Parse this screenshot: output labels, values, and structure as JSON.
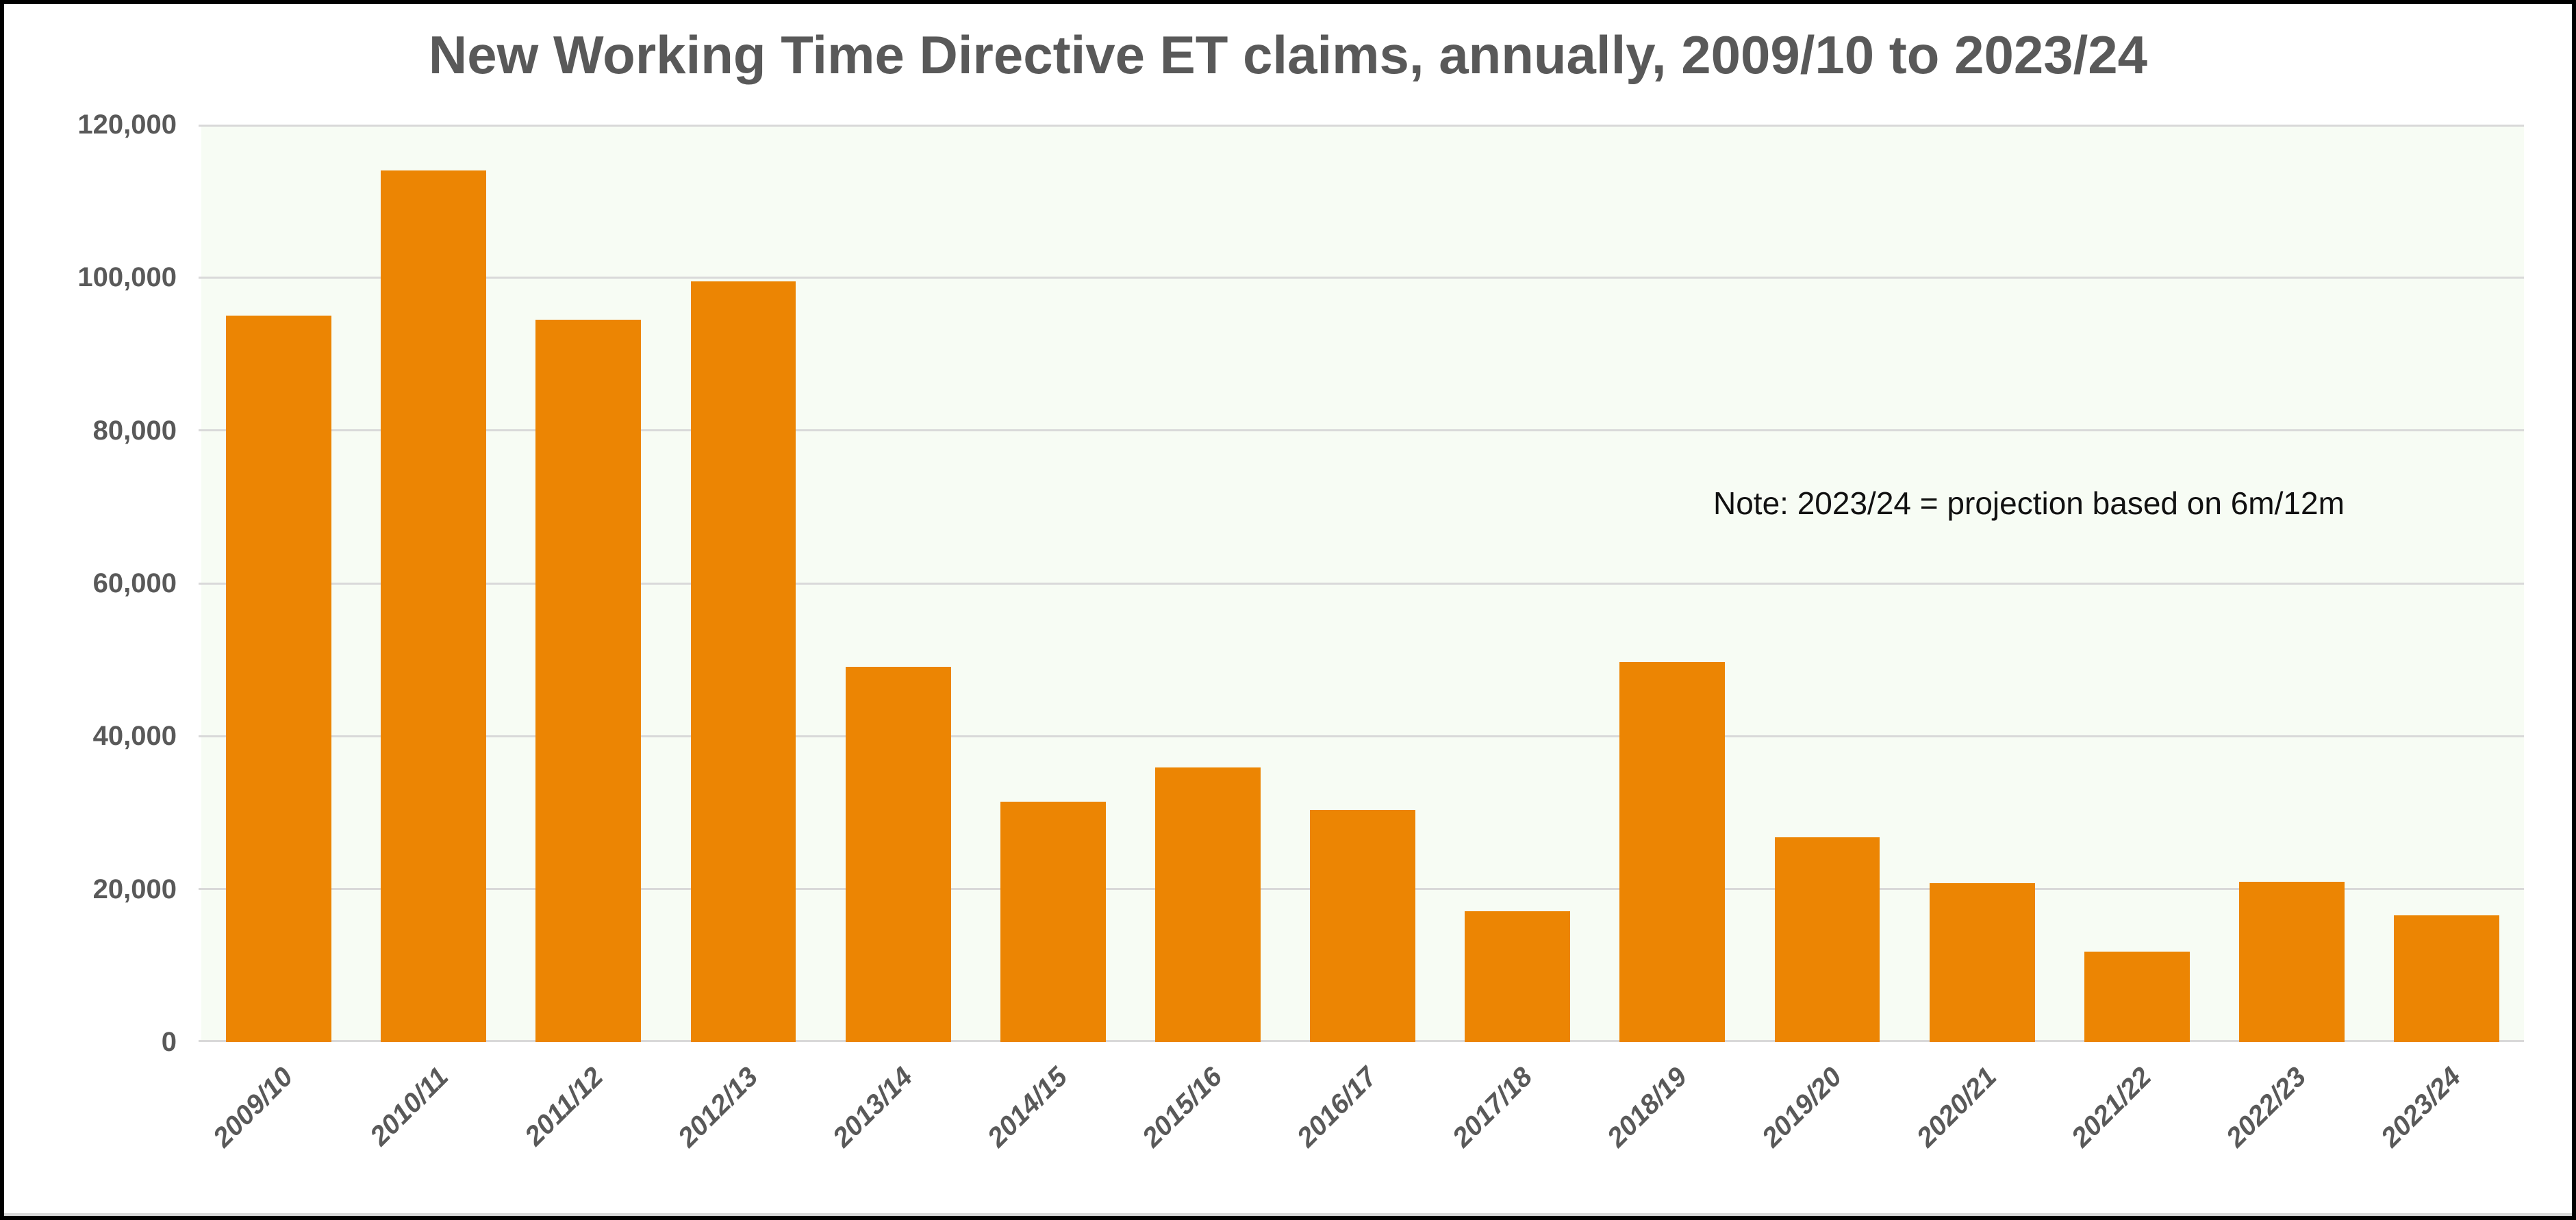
{
  "title": "New Working Time Directive ET claims, annually, 2009/10 to 2023/24",
  "note": "Note: 2023/24 = projection based on 6m/12m",
  "colors": {
    "bar": "#ec8503",
    "plot_bg": "#f7fcf4",
    "gridline": "#d9d9d9",
    "axis_line": "#d9d9d9",
    "label": "#595959",
    "note_text": "#111111",
    "page_bg": "#ffffff",
    "border": "#000000"
  },
  "chart_data": {
    "type": "bar",
    "title": "New Working Time Directive ET claims, annually, 2009/10 to 2023/24",
    "categories": [
      "2009/10",
      "2010/11",
      "2011/12",
      "2012/13",
      "2013/14",
      "2014/15",
      "2015/16",
      "2016/17",
      "2017/18",
      "2018/19",
      "2019/20",
      "2020/21",
      "2021/22",
      "2022/23",
      "2023/24"
    ],
    "values": [
      95000,
      114000,
      94500,
      99500,
      49100,
      31400,
      35900,
      30400,
      17100,
      49700,
      26800,
      20800,
      11800,
      21000,
      16600
    ],
    "xlabel": "",
    "ylabel": "",
    "ylim": [
      0,
      120000
    ],
    "ytick_step": 20000,
    "ytick_labels": [
      "0",
      "20,000",
      "40,000",
      "60,000",
      "80,000",
      "100,000",
      "120,000"
    ],
    "grid": "horizontal",
    "legend": "none",
    "annotation": "Note: 2023/24 = projection based on 6m/12m"
  }
}
